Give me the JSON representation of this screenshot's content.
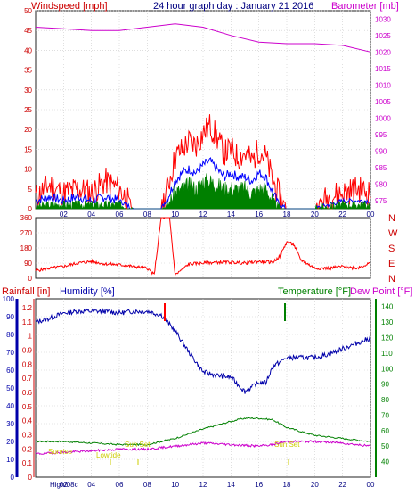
{
  "panel1": {
    "title": "24 hour graph day : January 21 2016",
    "left_label": "Windspeed [mph]",
    "right_label": "Barometer [mb]",
    "y_ticks": [
      "50",
      "45",
      "40",
      "35",
      "30",
      "25",
      "20",
      "15",
      "10",
      "5",
      "0"
    ],
    "right_ticks": [
      "1030",
      "1025",
      "1020",
      "1015",
      "1010",
      "1005",
      "1000",
      "995",
      "990",
      "985",
      "980",
      "975"
    ],
    "x_ticks": [
      "02",
      "04",
      "06",
      "08",
      "10",
      "12",
      "14",
      "16",
      "18",
      "20",
      "22",
      "00"
    ]
  },
  "panel2": {
    "y_ticks": [
      "360",
      "270",
      "180",
      "90",
      "0"
    ],
    "compass": [
      "N",
      "W",
      "S",
      "E",
      "N"
    ]
  },
  "panel3": {
    "rain_label": "Rainfall [in]",
    "humidity_label": "Humidity [%]",
    "temp_label": "Temperature [°F]",
    "dew_label": "Dew Point [°F]",
    "humidity_ticks": [
      "100",
      "90",
      "80",
      "70",
      "60",
      "50",
      "40",
      "30",
      "20",
      "10",
      "0"
    ],
    "rain_ticks": [
      "1.2",
      "1.1",
      "1",
      "0.9",
      "0.8",
      "0.7",
      "0.6",
      "0.5",
      "0.4",
      "0.3",
      "0.2",
      "0.1",
      "0"
    ],
    "temp_ticks": [
      "140",
      "130",
      "120",
      "110",
      "100",
      "90",
      "80",
      "70",
      "60",
      "50",
      "40"
    ],
    "x_ticks": [
      "High/08c",
      "02",
      "04",
      "06",
      "08",
      "10",
      "12",
      "14",
      "16",
      "18",
      "20",
      "22",
      "00"
    ],
    "annotations": {
      "sunrise": "Sunrise",
      "lowtide": "Lowtide",
      "sunset_left": "Sun Set",
      "sunset_right": "Sun Set"
    }
  },
  "colors": {
    "gust": "#ff0000",
    "avg": "#0000ff",
    "min": "#008000",
    "baro": "#cc00cc",
    "dir": "#ff0000",
    "humidity": "#0000aa",
    "temp": "#008000",
    "dew": "#cc00cc"
  },
  "chart_data": [
    {
      "type": "line",
      "title": "24 hour graph day : January 21 2016",
      "x_unit": "hour",
      "ylabel": "Windspeed [mph]",
      "ylim": [
        0,
        50
      ],
      "y2label": "Barometer [mb]",
      "y2lim": [
        972.5,
        1032.5
      ],
      "series": [
        {
          "axis": "left",
          "x": [
            0,
            1,
            2,
            3,
            4,
            5,
            6,
            7,
            8,
            9,
            9.5,
            10,
            10.5,
            11,
            11.5,
            12,
            12.5,
            13,
            13.5,
            14,
            14.5,
            15,
            15.5,
            16,
            16.5,
            17,
            17.5,
            18,
            19,
            20,
            21,
            22,
            23,
            24
          ],
          "values": [
            3,
            6,
            4,
            5,
            4,
            7,
            5,
            0,
            0,
            0,
            6,
            13,
            15,
            17,
            16,
            19,
            21,
            18,
            14,
            15,
            13,
            14,
            12,
            15,
            13,
            7,
            3,
            0,
            0,
            0,
            3,
            4,
            5,
            4
          ]
        },
        {
          "axis": "left",
          "x": [
            0,
            1,
            2,
            3,
            4,
            5,
            6,
            7,
            8,
            9,
            9.5,
            10,
            10.5,
            11,
            11.5,
            12,
            12.5,
            13,
            13.5,
            14,
            14.5,
            15,
            15.5,
            16,
            16.5,
            17,
            17.5,
            18,
            19,
            20,
            21,
            22,
            23,
            24
          ],
          "values": [
            2,
            3,
            2,
            3,
            2,
            3,
            2,
            0,
            0,
            0,
            3,
            7,
            9,
            10,
            9,
            11,
            12,
            10,
            8,
            9,
            8,
            8,
            7,
            9,
            8,
            4,
            1,
            0,
            0,
            0,
            1,
            2,
            2,
            2
          ]
        },
        {
          "axis": "left",
          "x": [
            0,
            1,
            2,
            3,
            4,
            5,
            6,
            7,
            8,
            9,
            9.5,
            10,
            10.5,
            11,
            11.5,
            12,
            12.5,
            13,
            13.5,
            14,
            14.5,
            15,
            15.5,
            16,
            16.5,
            17,
            17.5,
            18,
            19,
            20,
            21,
            22,
            23,
            24
          ],
          "values": [
            0.5,
            1,
            1,
            1,
            1,
            1,
            1,
            0,
            0,
            0,
            1,
            4,
            5,
            6,
            5,
            7,
            7,
            6,
            5,
            5,
            5,
            5,
            4,
            5,
            5,
            2,
            0,
            0,
            0,
            0,
            0.5,
            1,
            1,
            1
          ]
        },
        {
          "axis": "right",
          "x": [
            0,
            2,
            4,
            6,
            8,
            10,
            12,
            14,
            16,
            18,
            20,
            22,
            24
          ],
          "values": [
            1027.5,
            1027,
            1026.5,
            1026.5,
            1027.5,
            1028.5,
            1027.5,
            1025,
            1023,
            1022.5,
            1022.5,
            1022,
            1020
          ]
        }
      ]
    },
    {
      "type": "line",
      "x_unit": "hour",
      "ylim": [
        0,
        360
      ],
      "series": [
        {
          "x": [
            0,
            1,
            2,
            3,
            4,
            5,
            6,
            7,
            8,
            8.5,
            9,
            9.6,
            10,
            11,
            12,
            13,
            14,
            15,
            16,
            17,
            17.5,
            18,
            18.5,
            19,
            20,
            21,
            22,
            23,
            24
          ],
          "values": [
            45,
            60,
            70,
            90,
            100,
            85,
            80,
            70,
            60,
            20,
            360,
            360,
            20,
            85,
            90,
            95,
            95,
            90,
            100,
            95,
            130,
            215,
            200,
            110,
            60,
            60,
            70,
            60,
            90
          ]
        }
      ]
    },
    {
      "type": "line",
      "x_unit": "hour",
      "ylabel": "Humidity [%]",
      "ylim": [
        0,
        100
      ],
      "y2label": "Temperature [°F]",
      "y2lim": [
        30,
        145
      ],
      "series": [
        {
          "axis": "humidity",
          "x": [
            0,
            1,
            2,
            3,
            4,
            5,
            6,
            7,
            8,
            9,
            10,
            11,
            12,
            13,
            14,
            15,
            16,
            16.5,
            17,
            18,
            19,
            20,
            21,
            22,
            23,
            24
          ],
          "values": [
            87,
            89,
            92,
            93,
            93,
            93,
            92,
            93,
            93,
            91,
            82,
            70,
            59,
            57,
            56,
            48,
            53,
            53,
            62,
            67,
            67,
            67,
            69,
            72,
            75,
            78
          ]
        },
        {
          "axis": "temperature",
          "x": [
            0,
            2,
            4,
            6,
            8,
            10,
            12,
            14,
            15,
            16,
            17,
            18,
            20,
            22,
            24
          ],
          "values": [
            53,
            53,
            52,
            51,
            51,
            55,
            61,
            66,
            68,
            68,
            67,
            62,
            57,
            55,
            53
          ]
        },
        {
          "axis": "temperature",
          "x": [
            0,
            2,
            4,
            6,
            8,
            10,
            12,
            14,
            16,
            17,
            18,
            20,
            22,
            24
          ],
          "values": [
            45,
            46,
            47,
            48,
            48,
            50,
            52,
            51,
            50,
            51,
            53,
            53,
            52,
            50
          ]
        }
      ]
    }
  ]
}
